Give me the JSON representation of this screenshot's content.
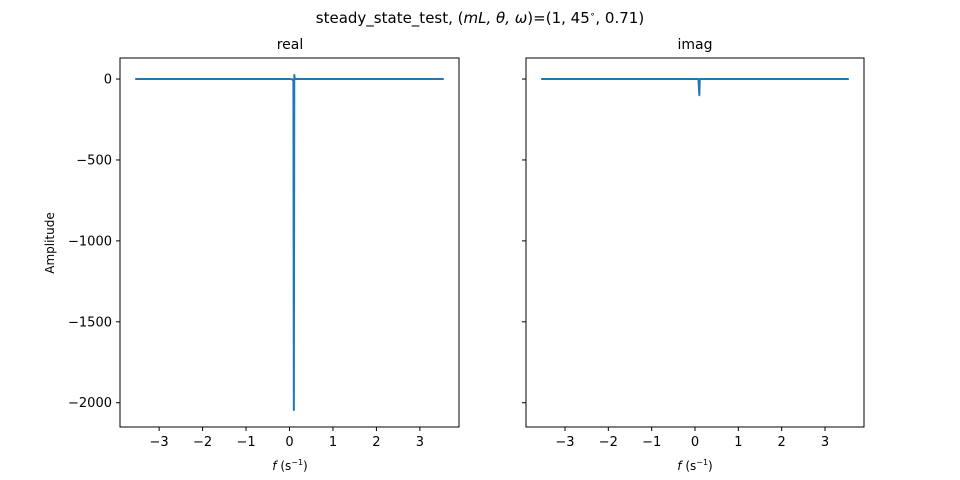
{
  "chart_data": {
    "type": "line",
    "suptitle": {
      "prefix": "steady_state_test, (",
      "math": "mL, θ, ω",
      "suffix": ")=(1, 45",
      "degree": "∘",
      "tail": ", 0.71)"
    },
    "shared_y": true,
    "line_color": "#1f77b4",
    "panels": [
      {
        "title": "real",
        "xlabel": {
          "var": "f",
          "unit": " (s",
          "exp": "−1",
          "close": ")"
        },
        "ylabel": "Amplitude",
        "xlim": [
          -3.9,
          3.9
        ],
        "ylim": [
          -2150,
          130
        ],
        "xticks": [
          -3,
          -2,
          -1,
          0,
          1,
          2,
          3
        ],
        "xtick_labels": [
          "−3",
          "−2",
          "−1",
          "0",
          "1",
          "2",
          "3"
        ],
        "yticks": [
          0,
          -500,
          -1000,
          -1500,
          -2000
        ],
        "ytick_labels": [
          "0",
          "−500",
          "−1000",
          "−1500",
          "−2000"
        ],
        "series": [
          {
            "x": [
              -3.55,
              0.0,
              0.07,
              0.09,
              0.1,
              0.11,
              0.12,
              0.13,
              0.15,
              3.55
            ],
            "y": [
              0,
              0,
              -2,
              -12,
              -2045,
              25,
              4,
              1,
              0,
              0
            ]
          }
        ]
      },
      {
        "title": "imag",
        "xlabel": {
          "var": "f",
          "unit": " (s",
          "exp": "−1",
          "close": ")"
        },
        "ylabel": "",
        "xlim": [
          -3.9,
          3.9
        ],
        "ylim": [
          -2150,
          130
        ],
        "xticks": [
          -3,
          -2,
          -1,
          0,
          1,
          2,
          3
        ],
        "xtick_labels": [
          "−3",
          "−2",
          "−1",
          "0",
          "1",
          "2",
          "3"
        ],
        "yticks": [
          0,
          -500,
          -1000,
          -1500,
          -2000
        ],
        "ytick_labels": [],
        "series": [
          {
            "x": [
              -3.55,
              0.08,
              0.1,
              0.11,
              0.12,
              3.55
            ],
            "y": [
              0,
              0,
              -100,
              -2,
              0,
              0
            ]
          }
        ]
      }
    ]
  }
}
